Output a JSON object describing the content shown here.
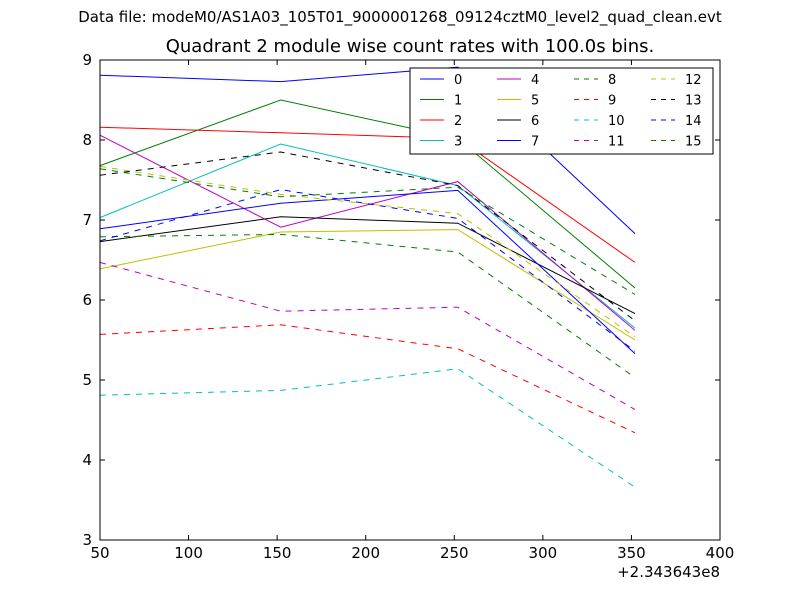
{
  "figure": {
    "suptitle": "Data file: modeM0/AS1A03_105T01_9000001268_09124cztM0_level2_quad_clean.evt"
  },
  "chart_data": {
    "type": "line",
    "title": "Quadrant 2 module wise count rates with 100.0s bins.",
    "xlabel": "",
    "ylabel": "",
    "x_offset_label": "+2.343643e8",
    "xlim": [
      50,
      400
    ],
    "ylim": [
      3,
      9
    ],
    "xticks": [
      50,
      100,
      150,
      200,
      250,
      300,
      350,
      400
    ],
    "yticks": [
      3,
      4,
      5,
      6,
      7,
      8,
      9
    ],
    "x": [
      50,
      152,
      252,
      352
    ],
    "legend_position": "top-right",
    "legend_columns": 4,
    "series": [
      {
        "name": "0",
        "color": "#0000ff",
        "dash": "solid",
        "values": [
          8.81,
          8.73,
          8.91,
          6.83
        ]
      },
      {
        "name": "1",
        "color": "#008000",
        "dash": "solid",
        "values": [
          7.68,
          8.5,
          8.02,
          6.15
        ]
      },
      {
        "name": "2",
        "color": "#ff0000",
        "dash": "solid",
        "values": [
          8.16,
          8.09,
          8.02,
          6.47
        ]
      },
      {
        "name": "3",
        "color": "#00bfbf",
        "dash": "solid",
        "values": [
          7.03,
          7.95,
          7.43,
          5.65
        ]
      },
      {
        "name": "4",
        "color": "#bf00bf",
        "dash": "solid",
        "values": [
          8.06,
          6.91,
          7.48,
          5.62
        ]
      },
      {
        "name": "5",
        "color": "#bfbf00",
        "dash": "solid",
        "values": [
          6.39,
          6.85,
          6.88,
          5.5
        ]
      },
      {
        "name": "6",
        "color": "#000000",
        "dash": "solid",
        "values": [
          6.73,
          7.04,
          6.96,
          5.83
        ]
      },
      {
        "name": "7",
        "color": "#0000ff",
        "dash": "solid",
        "values": [
          6.89,
          7.21,
          7.37,
          5.33
        ]
      },
      {
        "name": "8",
        "color": "#008000",
        "dash": "dashed",
        "values": [
          6.79,
          6.82,
          6.6,
          5.03
        ]
      },
      {
        "name": "9",
        "color": "#ff0000",
        "dash": "dashed",
        "values": [
          5.57,
          5.69,
          5.39,
          4.34
        ]
      },
      {
        "name": "10",
        "color": "#00bfbf",
        "dash": "dashed",
        "values": [
          4.81,
          4.87,
          5.14,
          3.66
        ]
      },
      {
        "name": "11",
        "color": "#bf00bf",
        "dash": "dashed",
        "values": [
          6.47,
          5.86,
          5.91,
          4.63
        ]
      },
      {
        "name": "12",
        "color": "#bfbf00",
        "dash": "dashed",
        "values": [
          7.67,
          7.32,
          7.08,
          5.54
        ]
      },
      {
        "name": "13",
        "color": "#000000",
        "dash": "dashed",
        "values": [
          7.56,
          7.85,
          7.43,
          5.74
        ]
      },
      {
        "name": "14",
        "color": "#0000ff",
        "dash": "dashed",
        "values": [
          6.74,
          7.38,
          7.02,
          5.36
        ]
      },
      {
        "name": "15",
        "color": "#008000",
        "dash": "dashed",
        "values": [
          7.64,
          7.29,
          7.41,
          6.07
        ]
      }
    ]
  }
}
